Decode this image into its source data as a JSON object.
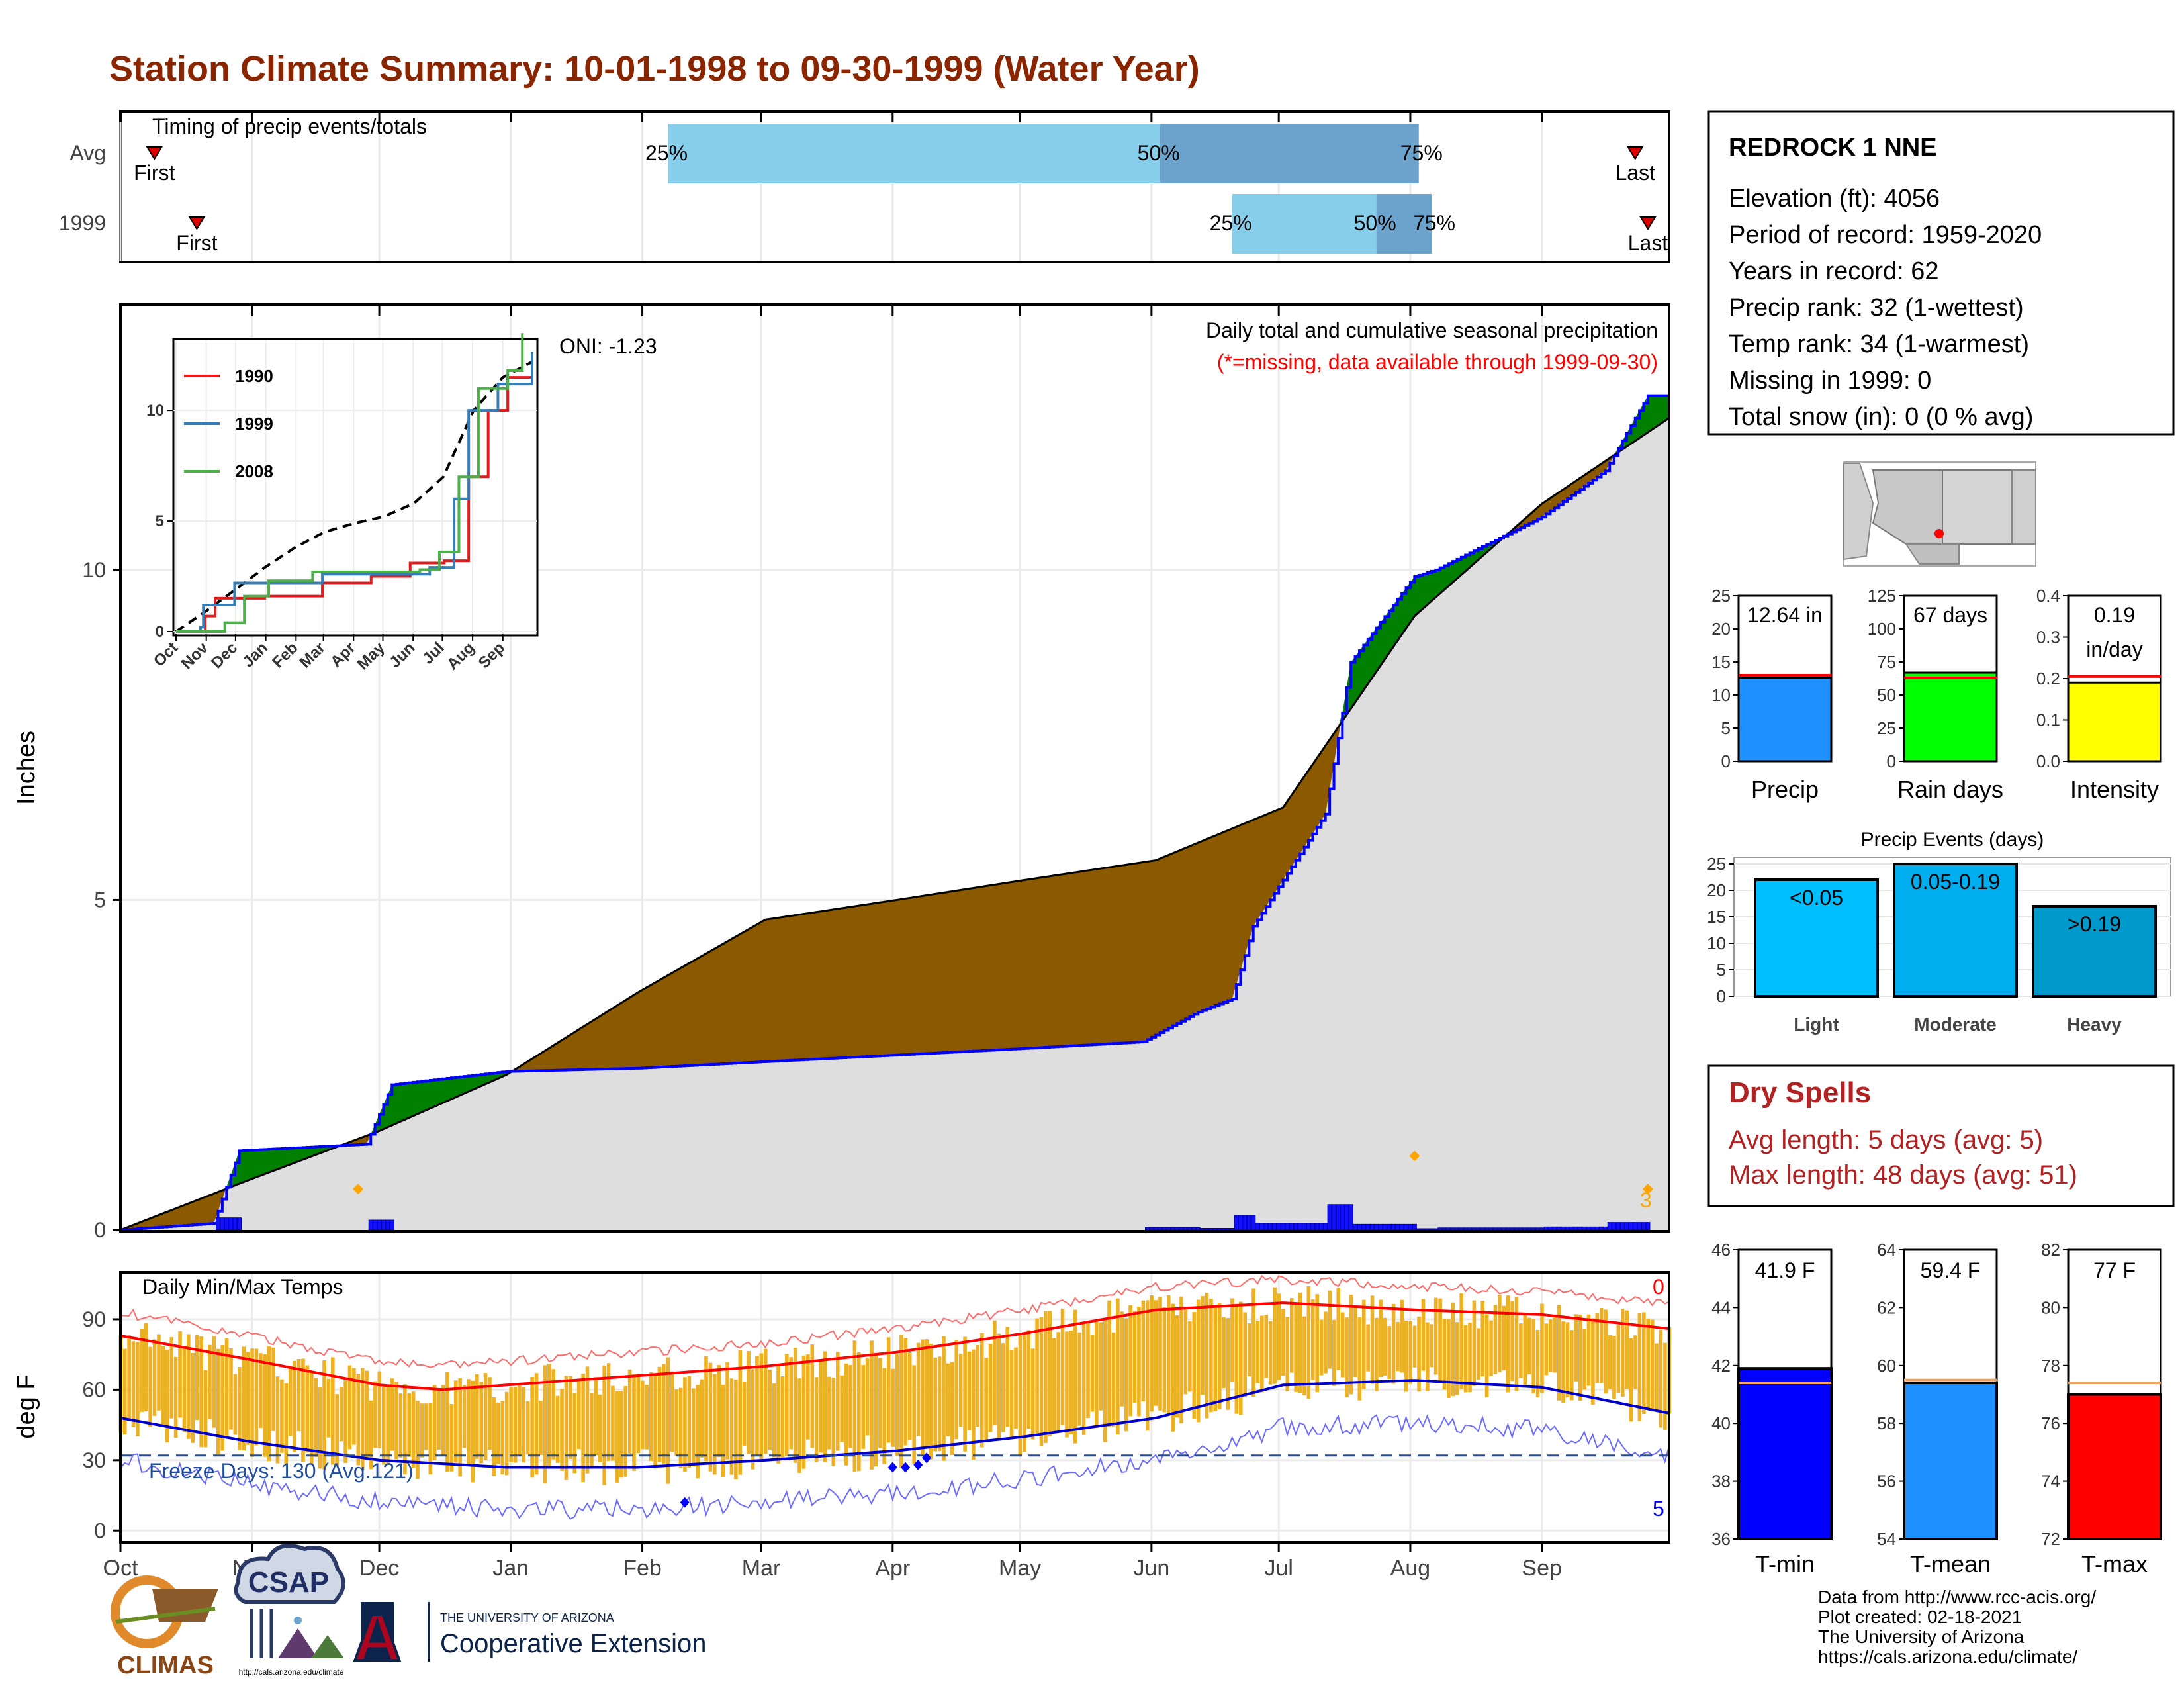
{
  "title": "Station Climate Summary: 10-01-1998 to 09-30-1999 (Water Year)",
  "colors": {
    "title": "#8B2500",
    "q1": "#87CEEB",
    "q2": "#6BA3CD",
    "deficit": "#8B5A00",
    "surplus": "#008000",
    "current": "#0000FF",
    "tempbar": "#F0B020",
    "tmax_avg": "#FF0000",
    "tmin_avg": "#0000CC",
    "dry_spells": "#B22222"
  },
  "timing": {
    "title": "Timing of precip events/totals",
    "rows": [
      {
        "label": "Avg",
        "first_label": "First",
        "last_label": "Last",
        "first_day": 8,
        "last_day": 357,
        "q25_day": 129,
        "q50_day": 245,
        "q75_day": 306,
        "q25_label": "25%",
        "q50_label": "50%",
        "q75_label": "75%"
      },
      {
        "label": "1999",
        "first_label": "First",
        "last_label": "Last",
        "first_day": 18,
        "last_day": 360,
        "q25_day": 262,
        "q50_day": 296,
        "q75_day": 309,
        "q25_label": "25%",
        "q50_label": "50%",
        "q75_label": "75%"
      }
    ]
  },
  "precip_panel": {
    "title": "Daily total and cumulative seasonal precipitation",
    "missing_note": "(*=missing, data available through 1999-09-30)",
    "oni": "ONI: -1.23",
    "ylabel": "Inches",
    "yticks": [
      "0",
      "5",
      "10"
    ],
    "count_label": "3"
  },
  "inset": {
    "legend": [
      "1990",
      "1999",
      "2008"
    ],
    "series_colors": [
      "#E41A1C",
      "#377EB8",
      "#4DAF4A"
    ],
    "yticks": [
      "0",
      "5",
      "10"
    ],
    "xticks": [
      "Oct",
      "Nov",
      "Dec",
      "Jan",
      "Feb",
      "Mar",
      "Apr",
      "May",
      "Jun",
      "Jul",
      "Aug",
      "Sep"
    ]
  },
  "temp_panel": {
    "title": "Daily Min/Max Temps",
    "ylabel": "deg F",
    "yticks": [
      "0",
      "30",
      "60",
      "90"
    ],
    "freeze_label": "Freeze Days: 130 (Avg.121)",
    "hot_count": "0",
    "cold_count": "5"
  },
  "months": [
    "Oct",
    "Nov",
    "Dec",
    "Jan",
    "Feb",
    "Mar",
    "Apr",
    "May",
    "Jun",
    "Jul",
    "Aug",
    "Sep"
  ],
  "station": {
    "name": "REDROCK 1 NNE",
    "lines": [
      "Elevation (ft): 4056",
      "Period of record: 1959-2020",
      "Years in record: 62",
      "Precip rank: 32 (1-wettest)",
      "Temp rank: 34 (1-warmest)",
      "Missing in 1999: 0",
      "Total snow (in): 0 (0 % avg)"
    ]
  },
  "mini_bars": [
    {
      "label": "Precip",
      "value_text": "12.64 in",
      "value": 12.64,
      "avg": 13.0,
      "max": 25,
      "yticks": [
        "0",
        "5",
        "10",
        "15",
        "20",
        "25"
      ],
      "tick_values": [
        0,
        5,
        10,
        15,
        20,
        25
      ],
      "color": "#1E90FF"
    },
    {
      "label": "Rain days",
      "value_text": "67 days",
      "value": 67,
      "avg": 63,
      "max": 125,
      "yticks": [
        "0",
        "25",
        "50",
        "75",
        "100",
        "125"
      ],
      "tick_values": [
        0,
        25,
        50,
        75,
        100,
        125
      ],
      "color": "#00FF00"
    },
    {
      "label": "Intensity",
      "value_text": "0.19 in/day",
      "value_lines": [
        "0.19",
        "in/day"
      ],
      "value": 0.19,
      "avg": 0.205,
      "max": 0.4,
      "yticks": [
        "0.0",
        "0.1",
        "0.2",
        "0.3",
        "0.4"
      ],
      "tick_values": [
        0,
        0.1,
        0.2,
        0.3,
        0.4
      ],
      "color": "#FFFF00"
    }
  ],
  "precip_events": {
    "title": "Precip Events (days)",
    "yticks": [
      "0",
      "5",
      "10",
      "15",
      "20",
      "25"
    ],
    "categories": [
      "Light",
      "Moderate",
      "Heavy"
    ],
    "bar_labels": [
      "<0.05",
      "0.05-0.19",
      ">0.19"
    ],
    "values": [
      22,
      25,
      17
    ],
    "colors": [
      "#00BFFF",
      "#00AEEF",
      "#0099CC"
    ]
  },
  "dry_spells": {
    "title": "Dry Spells",
    "avg_line": "Avg length: 5 days (avg: 5)",
    "max_line": "Max length: 48 days (avg: 51)"
  },
  "temp_bars": [
    {
      "label": "T-min",
      "value_text": "41.9 F",
      "value": 41.9,
      "avg": 41.4,
      "min": 36,
      "max": 46,
      "yticks": [
        "36",
        "38",
        "40",
        "42",
        "44",
        "46"
      ],
      "color": "#0000FF"
    },
    {
      "label": "T-mean",
      "value_text": "59.4 F",
      "value": 59.4,
      "avg": 59.5,
      "min": 54,
      "max": 64,
      "yticks": [
        "54",
        "56",
        "58",
        "60",
        "62",
        "64"
      ],
      "color": "#1E90FF"
    },
    {
      "label": "T-max",
      "value_text": "77 F",
      "value": 77.0,
      "avg": 77.4,
      "min": 72,
      "max": 82,
      "yticks": [
        "72",
        "74",
        "76",
        "78",
        "80",
        "82"
      ],
      "color": "#FF0000"
    }
  ],
  "footer": {
    "lines": [
      "Data from http://www.rcc-acis.org/",
      "Plot created: 02-18-2021",
      "The University of Arizona",
      "https://cals.arizona.edu/climate/"
    ],
    "climas": "CLIMAS",
    "csap": "CSAP",
    "csap_url": "http://cals.arizona.edu/climate",
    "ua_small": "THE UNIVERSITY OF ARIZONA",
    "ua_big": "Cooperative Extension",
    "ua_letter": "A"
  },
  "chart_data": [
    {
      "type": "area",
      "title": "Daily total and cumulative seasonal precipitation",
      "ylabel": "Inches",
      "ylim": [
        0,
        14
      ],
      "x": "day of water year (Oct 1 = 0)",
      "avg_cumulative": {
        "x": [
          0,
          30,
          61,
          91,
          122,
          152,
          183,
          213,
          244,
          274,
          305,
          335,
          365
        ],
        "y": [
          0,
          0.75,
          1.5,
          2.35,
          3.6,
          4.7,
          5.0,
          5.3,
          5.6,
          6.4,
          9.3,
          11.0,
          12.3
        ]
      },
      "current_cumulative": {
        "x": [
          0,
          22,
          28,
          58,
          64,
          91,
          122,
          152,
          183,
          213,
          241,
          254,
          262,
          267,
          284,
          290,
          305,
          310,
          335,
          350,
          360,
          365
        ],
        "y": [
          0,
          0.1,
          1.2,
          1.3,
          2.2,
          2.4,
          2.45,
          2.55,
          2.65,
          2.75,
          2.85,
          3.3,
          3.5,
          4.6,
          6.3,
          8.6,
          9.9,
          10.0,
          10.8,
          11.5,
          12.64,
          12.64
        ]
      },
      "daily_max_in": 1.0
    },
    {
      "type": "line",
      "title": "Daily Min/Max Temps",
      "ylabel": "deg F",
      "ylim": [
        -5,
        110
      ],
      "avg_tmax": {
        "x": [
          0,
          30,
          61,
          76,
          91,
          122,
          152,
          183,
          213,
          244,
          274,
          305,
          335,
          365
        ],
        "y": [
          83,
          73,
          62,
          60,
          62,
          66,
          70,
          76,
          84,
          94,
          97,
          94,
          92,
          86
        ]
      },
      "avg_tmin": {
        "x": [
          0,
          30,
          61,
          91,
          122,
          152,
          183,
          213,
          244,
          274,
          305,
          335,
          365
        ],
        "y": [
          48,
          38,
          30,
          27,
          27,
          30,
          34,
          40,
          48,
          62,
          64,
          61,
          50
        ]
      },
      "freeze_threshold": 32
    }
  ]
}
